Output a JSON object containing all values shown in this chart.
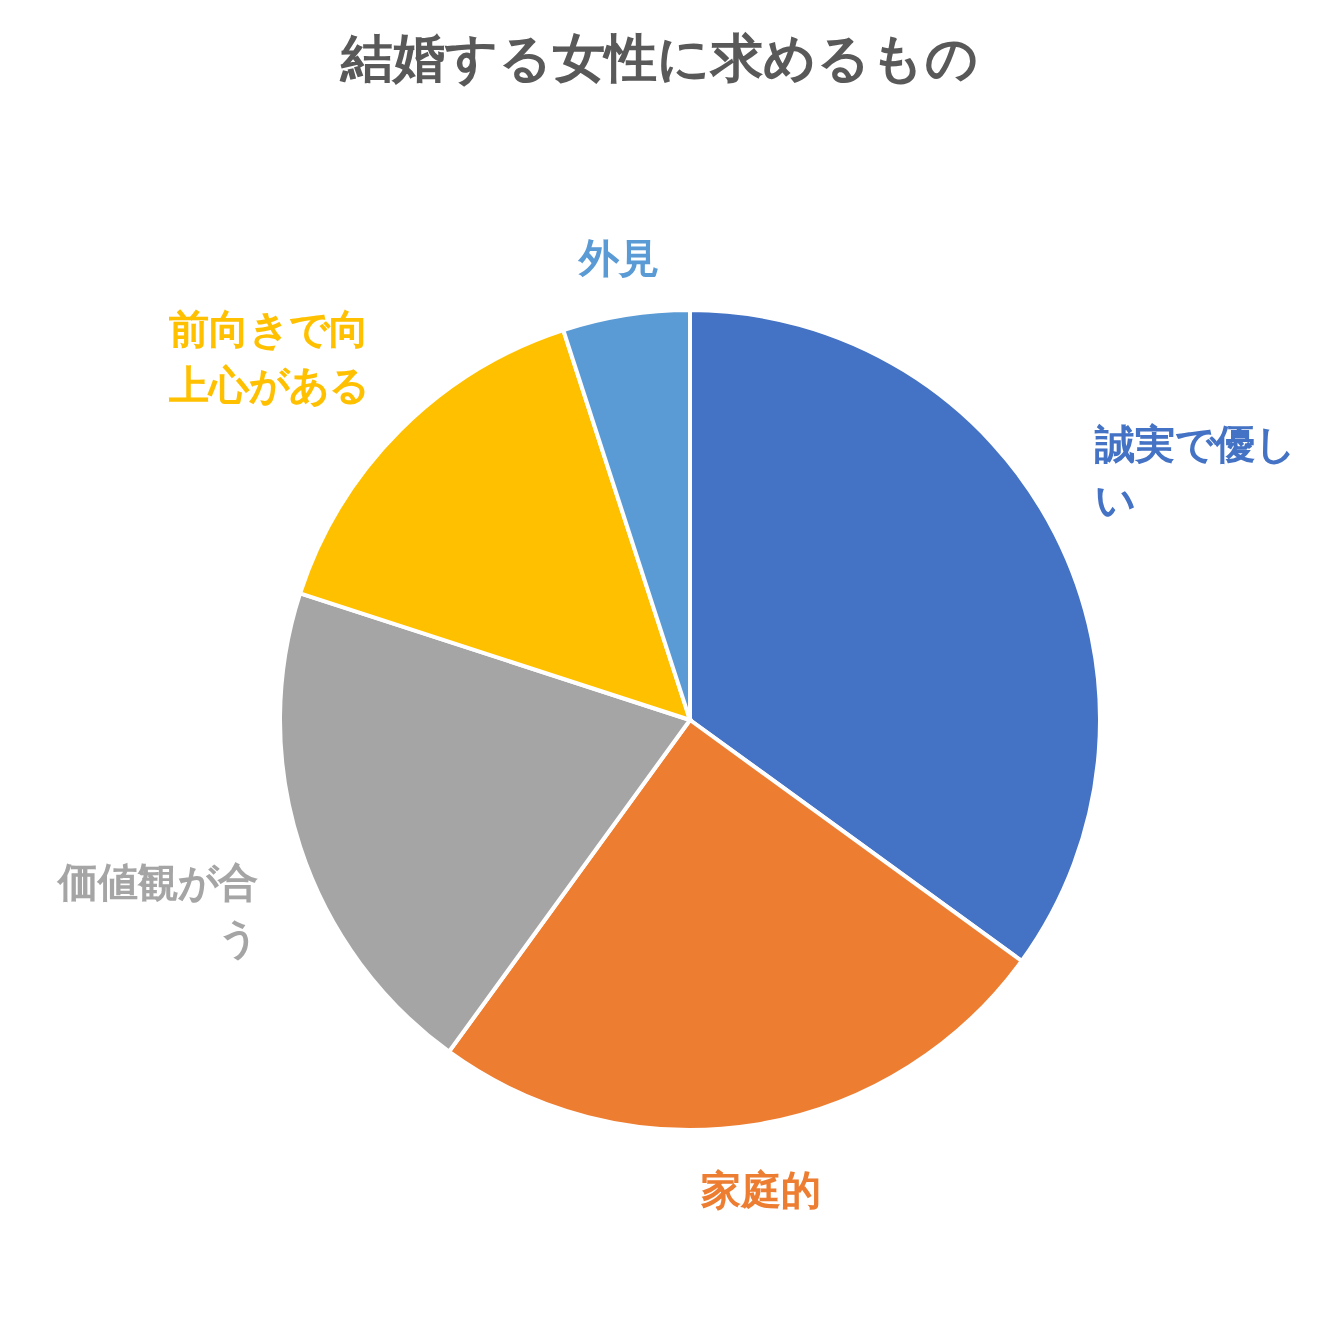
{
  "chart_data": {
    "type": "pie",
    "title": "結婚する女性に求めるもの",
    "categories": [
      "誠実で優しい",
      "家庭的",
      "価値観が合う",
      "前向きで向上心がある",
      "外見"
    ],
    "values": [
      35,
      25,
      20,
      15,
      5
    ],
    "colors": [
      "#4472c4",
      "#ed7d31",
      "#a5a5a5",
      "#ffc000",
      "#5b9bd5"
    ]
  }
}
